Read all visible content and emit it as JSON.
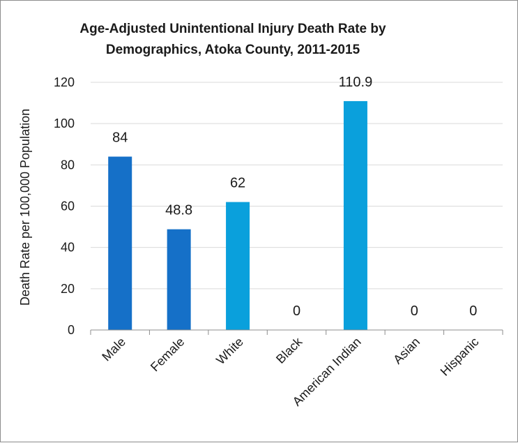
{
  "chart_data": {
    "type": "bar",
    "title_lines": [
      "Age-Adjusted Unintentional Injury Death Rate by",
      "Demographics, Atoka County, 2011-2015"
    ],
    "ylabel": "Death Rate per 100,000 Population",
    "xlabel": "",
    "categories": [
      "Male",
      "Female",
      "White",
      "Black",
      "American Indian",
      "Asian",
      "Hispanic"
    ],
    "values": [
      84,
      48.8,
      62,
      0,
      110.9,
      0,
      0
    ],
    "value_labels": [
      "84",
      "48.8",
      "62",
      "0",
      "110.9",
      "0",
      "0"
    ],
    "bar_colors": [
      "#1570c8",
      "#1570c8",
      "#0aa0dc",
      "#0aa0dc",
      "#0aa0dc",
      "#0aa0dc",
      "#0aa0dc"
    ],
    "ylim": [
      0,
      120
    ],
    "yticks": [
      0,
      20,
      40,
      60,
      80,
      100,
      120
    ],
    "grid": true,
    "gridline_color": "#d9d9d9",
    "axis_color": "#8c8c8c",
    "legend": "none"
  }
}
